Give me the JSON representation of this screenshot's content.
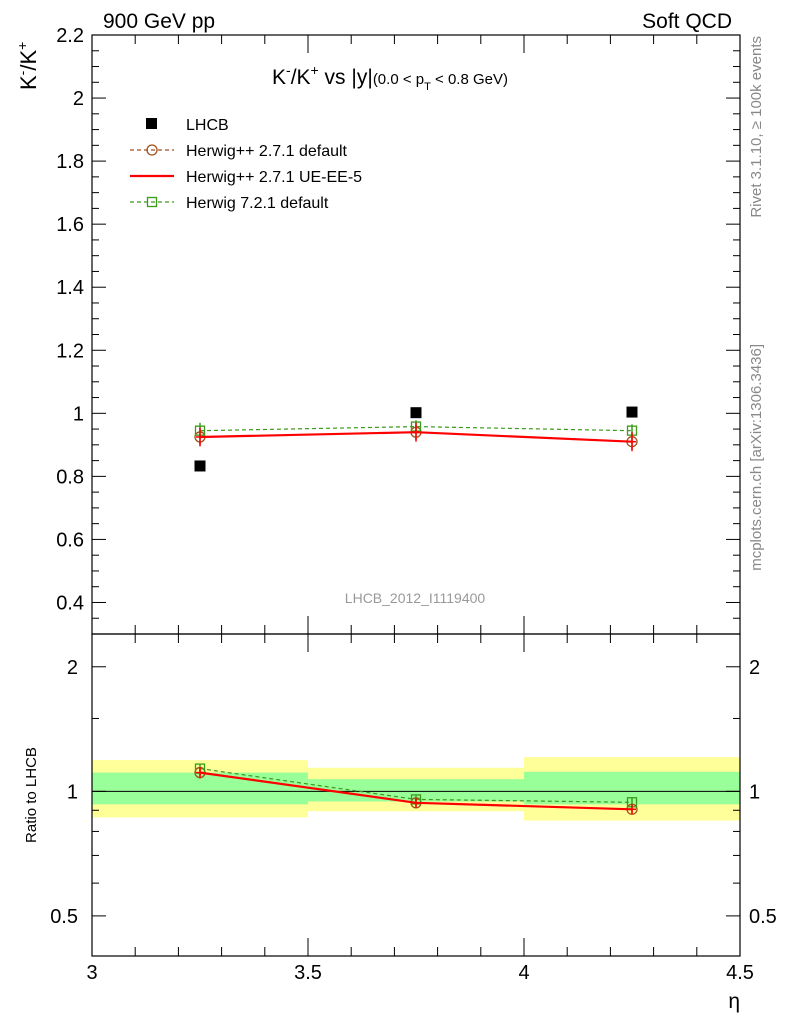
{
  "header": {
    "left_label": "900 GeV pp",
    "right_label": "Soft QCD"
  },
  "side_labels": {
    "rivet": "Rivet 3.1.10, ≥ 100k events",
    "source": "mcplots.cern.ch [arXiv:1306.3436]"
  },
  "chart_data": [
    {
      "type": "scatter",
      "panel": "main",
      "title": {
        "prefix": "K",
        "minus": "-",
        "slash": "/K",
        "plus": "+",
        "mid": " vs |y|",
        "cut_open": "(0.0 < p",
        "cut_sub": "T",
        "cut_close": " < 0.8 GeV)"
      },
      "ylabel": {
        "k1": "K",
        "sup1": "-",
        "k2": "/K",
        "sup2": "+"
      },
      "analysis_label": "LHCB_2012_I1119400",
      "xlim": [
        3.0,
        4.5
      ],
      "ylim": [
        0.3,
        2.2
      ],
      "yticks": [
        0.4,
        0.6,
        0.8,
        1.0,
        1.2,
        1.4,
        1.6,
        1.8,
        2.0,
        2.2
      ],
      "ytick_labels": [
        "0.4",
        "0.6",
        "0.8",
        "1",
        "1.2",
        "1.4",
        "1.6",
        "1.8",
        "2",
        "2.2"
      ],
      "legend_placement": "top-left",
      "series": [
        {
          "name": "LHCB",
          "style": "data",
          "color": "#000000",
          "x": [
            3.25,
            3.75,
            4.25
          ],
          "y": [
            0.833,
            1.002,
            1.004
          ]
        },
        {
          "name": "Herwig++ 2.7.1 default",
          "style": "dashed-circle",
          "color": "#a0521e",
          "x": [
            3.25,
            3.75,
            4.25
          ],
          "y": [
            0.925,
            0.94,
            0.91
          ],
          "err": [
            0.025,
            0.025,
            0.025
          ]
        },
        {
          "name": "Herwig++ 2.7.1 UE-EE-5",
          "style": "solid",
          "color": "#ff0000",
          "x": [
            3.25,
            3.75,
            4.25
          ],
          "y": [
            0.925,
            0.94,
            0.91
          ],
          "err": [
            0.03,
            0.03,
            0.03
          ]
        },
        {
          "name": "Herwig 7.2.1 default",
          "style": "dashed-square",
          "color": "#3a9a1a",
          "x": [
            3.25,
            3.75,
            4.25
          ],
          "y": [
            0.945,
            0.958,
            0.945
          ],
          "err": [
            0.025,
            0.02,
            0.02
          ]
        }
      ]
    },
    {
      "type": "line",
      "panel": "ratio",
      "ylabel": "Ratio to LHCB",
      "xlabel": "η",
      "xlim": [
        3.0,
        4.5
      ],
      "ylim": [
        0.4,
        2.4
      ],
      "yscale": "log",
      "yticks": [
        0.5,
        1,
        2
      ],
      "ytick_labels": [
        "0.5",
        "1",
        "2"
      ],
      "xticks": [
        3.0,
        3.5,
        4.0,
        4.5
      ],
      "xtick_labels": [
        "3",
        "3.5",
        "4",
        "4.5"
      ],
      "bands": [
        {
          "x0": 3.0,
          "x1": 3.5,
          "inner": [
            0.93,
            1.11
          ],
          "outer": [
            0.865,
            1.19
          ]
        },
        {
          "x0": 3.5,
          "x1": 4.0,
          "inner": [
            0.945,
            1.07
          ],
          "outer": [
            0.895,
            1.14
          ]
        },
        {
          "x0": 4.0,
          "x1": 4.5,
          "inner": [
            0.93,
            1.115
          ],
          "outer": [
            0.85,
            1.21
          ]
        }
      ],
      "band_colors": {
        "inner": "#99ff99",
        "outer": "#ffff99"
      },
      "series": [
        {
          "name": "Herwig++ 2.7.1 default",
          "style": "dashed-circle",
          "color": "#a0521e",
          "x": [
            3.25,
            3.75,
            4.25
          ],
          "y": [
            1.11,
            0.938,
            0.905
          ],
          "err": [
            0.03,
            0.02,
            0.02
          ]
        },
        {
          "name": "Herwig++ 2.7.1 UE-EE-5",
          "style": "solid",
          "color": "#ff0000",
          "x": [
            3.25,
            3.75,
            4.25
          ],
          "y": [
            1.11,
            0.938,
            0.905
          ],
          "err": [
            0.035,
            0.025,
            0.025
          ]
        },
        {
          "name": "Herwig 7.2.1 default",
          "style": "dashed-square",
          "color": "#3a9a1a",
          "x": [
            3.25,
            3.75,
            4.25
          ],
          "y": [
            1.135,
            0.956,
            0.941
          ],
          "err": [
            0.03,
            0.02,
            0.02
          ]
        }
      ]
    }
  ]
}
